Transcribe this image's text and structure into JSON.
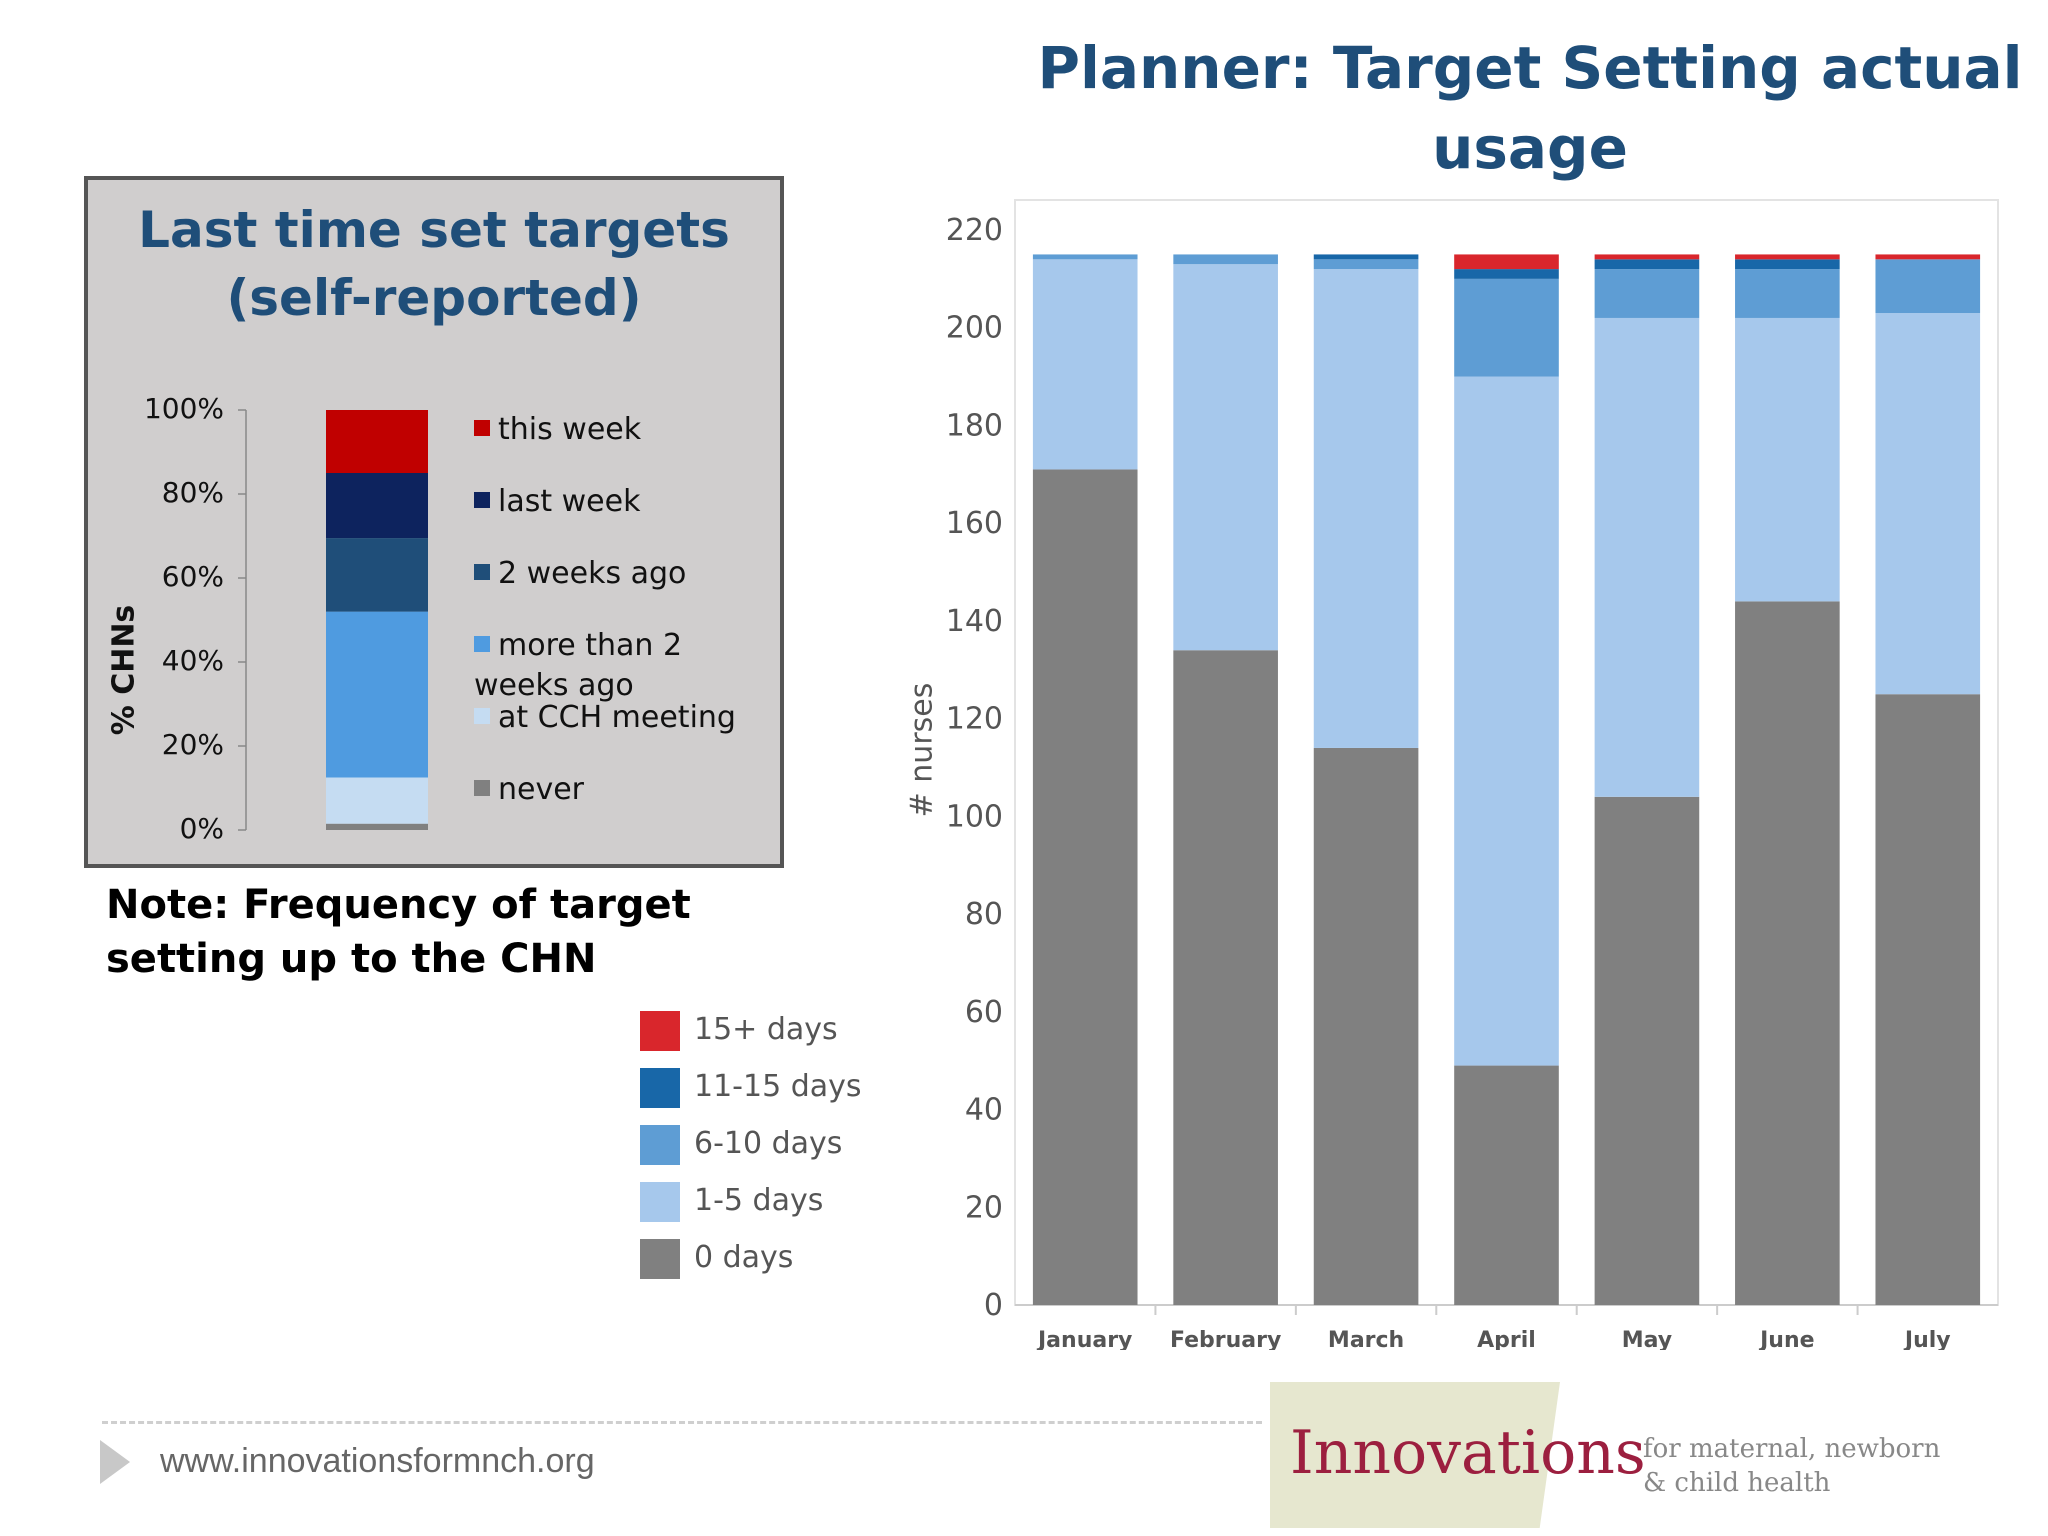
{
  "title_lines": [
    "Planner: Target Setting actual",
    "usage"
  ],
  "colors": {
    "title": "#1f4e79",
    "panel_bg": "#d0cece",
    "logo_text": "#9c1f3f"
  },
  "chart_data": [
    {
      "type": "bar",
      "stacked": true,
      "title_lines": [
        "Last time set targets",
        "(self-reported)"
      ],
      "ylabel": "% CHNs",
      "yticks": [
        "100%",
        "80%",
        "60%",
        "40%",
        "20%",
        "0%"
      ],
      "ylim": [
        0,
        100
      ],
      "legend_position": "right",
      "series": [
        {
          "name": "never",
          "values": [
            1.5
          ],
          "color": "#808080"
        },
        {
          "name": "at CCH meeting",
          "values": [
            11
          ],
          "color": "#c5dcf2"
        },
        {
          "name": "more than 2 weeks ago",
          "values": [
            39.5
          ],
          "color": "#4f9be0"
        },
        {
          "name": "2 weeks ago",
          "values": [
            17.5
          ],
          "color": "#1f4e79"
        },
        {
          "name": "last week",
          "values": [
            15.5
          ],
          "color": "#0d235e"
        },
        {
          "name": "this week",
          "values": [
            15
          ],
          "color": "#c00000"
        }
      ],
      "legend_order": [
        "this week",
        "last week",
        "2 weeks ago",
        "more than 2 weeks ago",
        "at CCH meeting",
        "never"
      ]
    },
    {
      "type": "bar",
      "stacked": true,
      "title": "",
      "xlabel": "",
      "ylabel": "# nurses",
      "categories": [
        "January",
        "February",
        "March",
        "April",
        "May",
        "June",
        "July"
      ],
      "yticks": [
        220,
        200,
        180,
        160,
        140,
        120,
        100,
        80,
        60,
        40,
        20,
        0
      ],
      "ylim": [
        0,
        225
      ],
      "legend_position": "left",
      "series": [
        {
          "name": "0 days",
          "values": [
            171,
            134,
            114,
            49,
            104,
            144,
            125
          ],
          "color": "#808080"
        },
        {
          "name": "1-5 days",
          "values": [
            43,
            79,
            98,
            141,
            98,
            58,
            78
          ],
          "color": "#a6c8ec"
        },
        {
          "name": "6-10 days",
          "values": [
            1,
            2,
            2,
            20,
            10,
            10,
            11
          ],
          "color": "#5e9dd4"
        },
        {
          "name": "11-15 days",
          "values": [
            0,
            0,
            1,
            2,
            2,
            2,
            0
          ],
          "color": "#1867a8"
        },
        {
          "name": "15+ days",
          "values": [
            0,
            0,
            0,
            3,
            1,
            1,
            1
          ],
          "color": "#d9262c"
        }
      ],
      "legend_order": [
        "15+ days",
        "11-15 days",
        "6-10 days",
        "1-5 days",
        "0 days"
      ]
    }
  ],
  "note_lines": [
    "Note: Frequency of target",
    "setting up to the CHN"
  ],
  "footer": {
    "url": "www.innovationsformnch.org",
    "logo_text": "Innovations",
    "logo_sub_lines": [
      "for maternal, newborn",
      "& child health"
    ]
  }
}
